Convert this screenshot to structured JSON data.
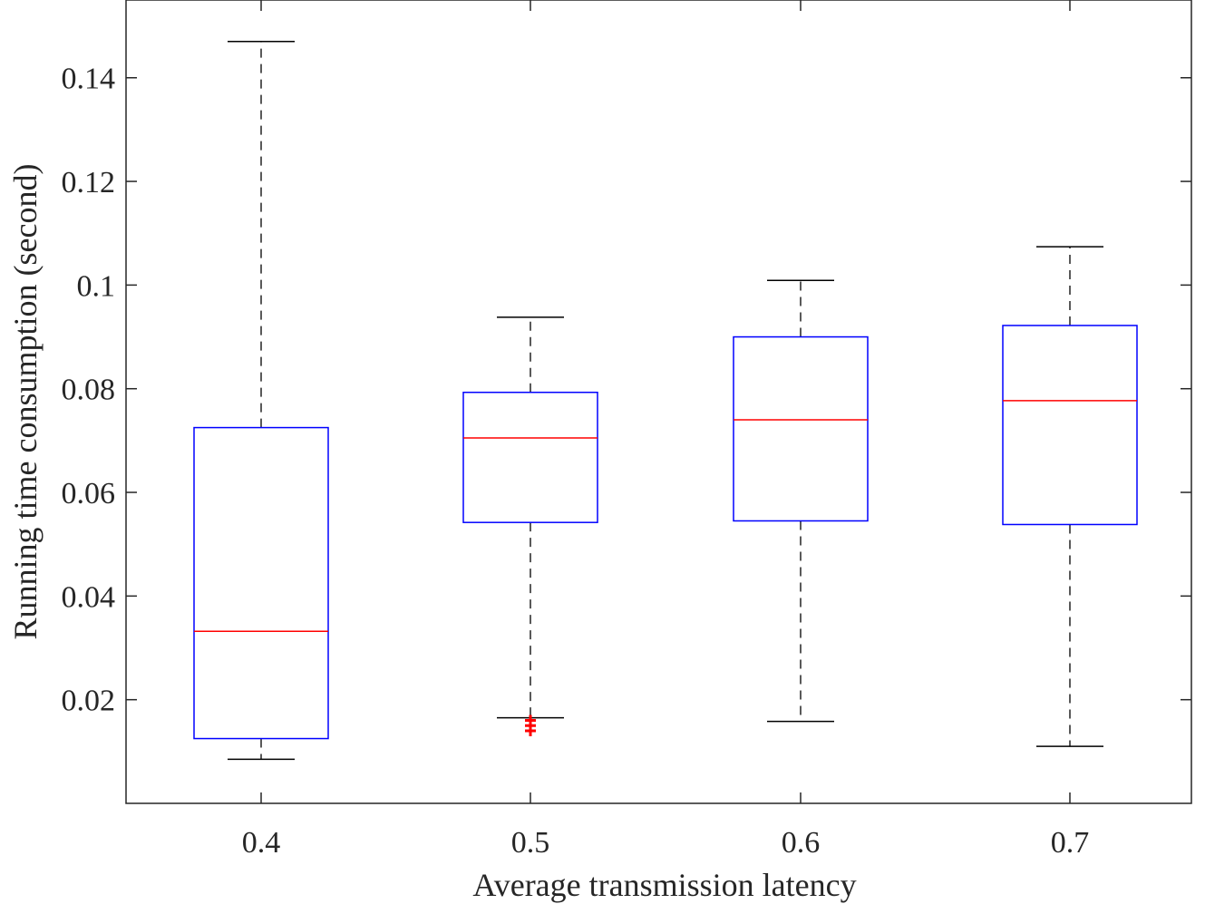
{
  "chart_data": {
    "type": "box",
    "title": "",
    "xlabel": "Average transmission latency",
    "ylabel": "Running time consumption (second)",
    "categories": [
      "0.4",
      "0.5",
      "0.6",
      "0.7"
    ],
    "ylim": [
      0.0,
      0.155
    ],
    "yticks": [
      0.02,
      0.04,
      0.06,
      0.08,
      0.1,
      0.12,
      0.14
    ],
    "ytick_labels": [
      "0.02",
      "0.04",
      "0.06",
      "0.08",
      "0.1",
      "0.12",
      "0.14"
    ],
    "boxes": [
      {
        "category": "0.4",
        "whisker_low": 0.0085,
        "q1": 0.0125,
        "median": 0.0332,
        "q3": 0.0725,
        "whisker_high": 0.147,
        "outliers": []
      },
      {
        "category": "0.5",
        "whisker_low": 0.0165,
        "q1": 0.0542,
        "median": 0.0705,
        "q3": 0.0793,
        "whisker_high": 0.0938,
        "outliers": [
          0.014,
          0.015,
          0.016
        ]
      },
      {
        "category": "0.6",
        "whisker_low": 0.0158,
        "q1": 0.0545,
        "median": 0.074,
        "q3": 0.09,
        "whisker_high": 0.1009,
        "outliers": []
      },
      {
        "category": "0.7",
        "whisker_low": 0.011,
        "q1": 0.0538,
        "median": 0.0777,
        "q3": 0.0922,
        "whisker_high": 0.1074,
        "outliers": []
      }
    ],
    "colors": {
      "box": "#0000ff",
      "median": "#ff0000",
      "whisker": "#000000",
      "outlier": "#ff0000",
      "axis": "#262626"
    },
    "grid": false
  }
}
